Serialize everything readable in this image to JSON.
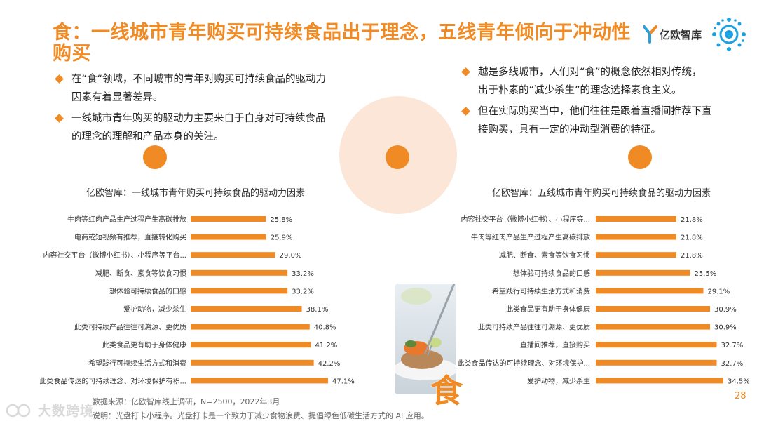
{
  "title": "食：一线城市青年购买可持续食品出于理念，五线青年倾向于冲动性购买",
  "logo_text": "亿欧智库",
  "left_bullets": [
    "在“食“领域，不同城市的青年对购买可持续食品的驱动力因素有着显著差异。",
    "一线城市青年购买的驱动力主要来自于自身对可持续食品的理念的理解和产品本身的关注。"
  ],
  "right_bullets": [
    "越是多线城市，人们对“食”的概念依然相对传统，出于朴素的“减少杀生”的理念选择素食主义。",
    "但在实际购买当中，他们往往是跟着直播间推荐下直接购买，具有一定的冲动型消费的特征。"
  ],
  "big_char": "食",
  "source_lines": [
    "数据来源：亿欧智库线上调研，N=2500，2022年3月",
    "说明：光盘打卡小程序。光盘打卡是一个致力于减少食物浪费、提倡绿色低碳生活方式的 AI 应用。"
  ],
  "page_number": "28",
  "watermark": "大数跨境",
  "colors": {
    "accent": "#f08a24",
    "bar": "#f08a24",
    "circle_light": "#fbe6d8"
  },
  "chart_data": [
    {
      "type": "bar",
      "orientation": "horizontal",
      "title": "亿欧智库：一线城市青年购买可持续食品的驱动力因素",
      "categories": [
        "牛肉等红肉产品生产过程产生高碳排放",
        "电商或短视频有推荐，直接转化购买",
        "内容社交平台（微博小红书）、小程序等平台...",
        "减肥、断食、素食等饮食习惯",
        "想体验可持续食品的口感",
        "爱护动物，减少杀生",
        "此类可持续产品往往可溯源、更优质",
        "此类食品更有助于身体健康",
        "希望践行可持续生活方式和消费",
        "此类食品传达的可持续理念、对环境保护有积..."
      ],
      "values": [
        25.8,
        25.9,
        29.0,
        33.2,
        33.2,
        38.1,
        40.8,
        41.2,
        42.2,
        47.1
      ],
      "labels": [
        "25.8%",
        "25.9%",
        "29.0%",
        "33.2%",
        "33.2%",
        "38.1%",
        "40.8%",
        "41.2%",
        "42.2%",
        "47.1%"
      ],
      "unit": "%"
    },
    {
      "type": "bar",
      "orientation": "horizontal",
      "title": "亿欧智库：五线城市青年购买可持续食品的驱动力因素",
      "categories": [
        "内容社交平台（微博小红书）、小程序等...",
        "牛肉等红肉产品生产过程产生高碳排放",
        "减肥、断食、素食等饮食习惯",
        "想体验可持续食品的口感",
        "希望践行可持续生活方式和消费",
        "此类食品更有助于身体健康",
        "此类可持续产品往往可溯源、更优质",
        "直播间推荐，直接购买",
        "此类食品传达的可持续理念、对环境保护...",
        "爱护动物，减少杀生"
      ],
      "values": [
        21.8,
        21.8,
        21.8,
        25.5,
        29.1,
        30.9,
        30.9,
        32.7,
        32.7,
        34.5
      ],
      "labels": [
        "21.8%",
        "21.8%",
        "21.8%",
        "25.5%",
        "29.1%",
        "30.9%",
        "30.9%",
        "32.7%",
        "32.7%",
        "34.5%"
      ],
      "unit": "%"
    }
  ]
}
